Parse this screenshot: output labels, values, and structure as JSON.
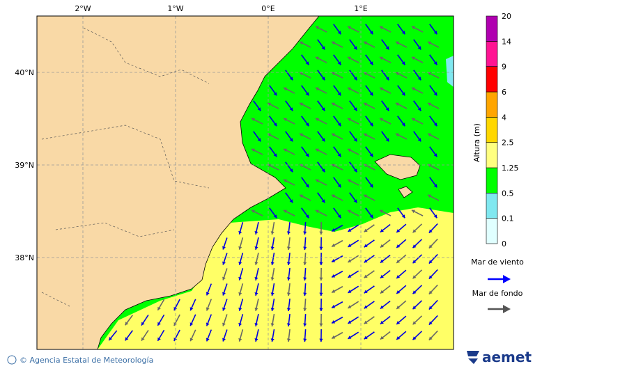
{
  "map": {
    "lon_ticks": [
      {
        "value": -2,
        "label": "2°W"
      },
      {
        "value": -1,
        "label": "1°W"
      },
      {
        "value": 0,
        "label": "0°E"
      },
      {
        "value": 1,
        "label": "1°E"
      }
    ],
    "lat_ticks": [
      {
        "value": 40,
        "label": "40°N"
      },
      {
        "value": 39,
        "label": "39°N"
      },
      {
        "value": 38,
        "label": "38°N"
      }
    ]
  },
  "colorbar": {
    "title": "Altura (m)",
    "levels": [
      0,
      0.1,
      0.5,
      1.25,
      2.5,
      4,
      6,
      9,
      14,
      20
    ],
    "colors": [
      "#e0ffff",
      "#80e8f0",
      "#00ff00",
      "#ffff80",
      "#ffd700",
      "#ffa500",
      "#ff0000",
      "#ff1493",
      "#b000b0"
    ]
  },
  "legend": {
    "wind_sea": "Mar de viento",
    "swell": "Mar de fondo"
  },
  "footer": {
    "credit": "© Agencia Estatal de Meteorología",
    "logo": "aemet"
  }
}
